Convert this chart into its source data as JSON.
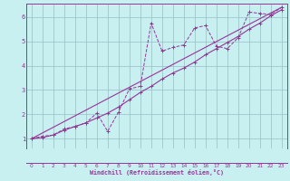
{
  "xlabel": "Windchill (Refroidissement éolien,°C)",
  "bg_color": "#c8f0f0",
  "line_color": "#993399",
  "grid_color": "#99bbcc",
  "xmin": -0.5,
  "xmax": 23.5,
  "ymin": 0.6,
  "ymax": 6.55,
  "yticks": [
    1,
    2,
    3,
    4,
    5,
    6
  ],
  "xticks": [
    0,
    1,
    2,
    3,
    4,
    5,
    6,
    7,
    8,
    9,
    10,
    11,
    12,
    13,
    14,
    15,
    16,
    17,
    18,
    19,
    20,
    21,
    22,
    23
  ],
  "series1_x": [
    0,
    1,
    2,
    3,
    4,
    5,
    6,
    7,
    8,
    9,
    10,
    11,
    12,
    13,
    14,
    15,
    16,
    17,
    18,
    19,
    20,
    21,
    22,
    23
  ],
  "series1_y": [
    1.0,
    1.1,
    1.15,
    1.4,
    1.5,
    1.65,
    2.05,
    1.3,
    2.1,
    3.05,
    3.15,
    5.75,
    4.6,
    4.75,
    4.85,
    5.55,
    5.65,
    4.8,
    4.7,
    5.15,
    6.2,
    6.15,
    6.1,
    6.4
  ],
  "series2_x": [
    0,
    23
  ],
  "series2_y": [
    1.0,
    6.4
  ],
  "series3_x": [
    0,
    1,
    2,
    3,
    4,
    5,
    6,
    7,
    8,
    9,
    10,
    11,
    12,
    13,
    14,
    15,
    16,
    17,
    18,
    19,
    20,
    21,
    22,
    23
  ],
  "series3_y": [
    1.0,
    1.05,
    1.15,
    1.35,
    1.5,
    1.65,
    1.85,
    2.05,
    2.3,
    2.6,
    2.9,
    3.15,
    3.45,
    3.7,
    3.9,
    4.15,
    4.45,
    4.7,
    4.95,
    5.2,
    5.5,
    5.75,
    6.05,
    6.3
  ]
}
